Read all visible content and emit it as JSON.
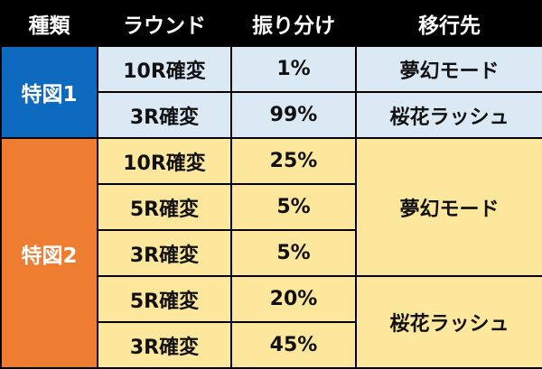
{
  "header": {
    "type": "種類",
    "round": "ラウンド",
    "allocation": "振り分け",
    "destination": "移行先"
  },
  "groups": [
    {
      "kind": "特図1",
      "rows": [
        {
          "round": "10R確変",
          "allocation": "1%",
          "destination": "夢幻モード"
        },
        {
          "round": "3R確変",
          "allocation": "99%",
          "destination": "桜花ラッシュ"
        }
      ]
    },
    {
      "kind": "特図2",
      "rows": [
        {
          "round": "10R確変",
          "allocation": "25%"
        },
        {
          "round": "5R確変",
          "allocation": "5%"
        },
        {
          "round": "3R確変",
          "allocation": "5%"
        },
        {
          "round": "5R確変",
          "allocation": "20%"
        },
        {
          "round": "3R確変",
          "allocation": "45%"
        }
      ],
      "destinations": [
        "夢幻モード",
        "桜花ラッシュ"
      ]
    }
  ],
  "colors": {
    "header_bg": "#000000",
    "kind1_bg": "#0e6abf",
    "kind2_bg": "#ee7d31",
    "kind1_rows_bg": "#dbe9f5",
    "kind2_rows_bg": "#fde79c"
  }
}
